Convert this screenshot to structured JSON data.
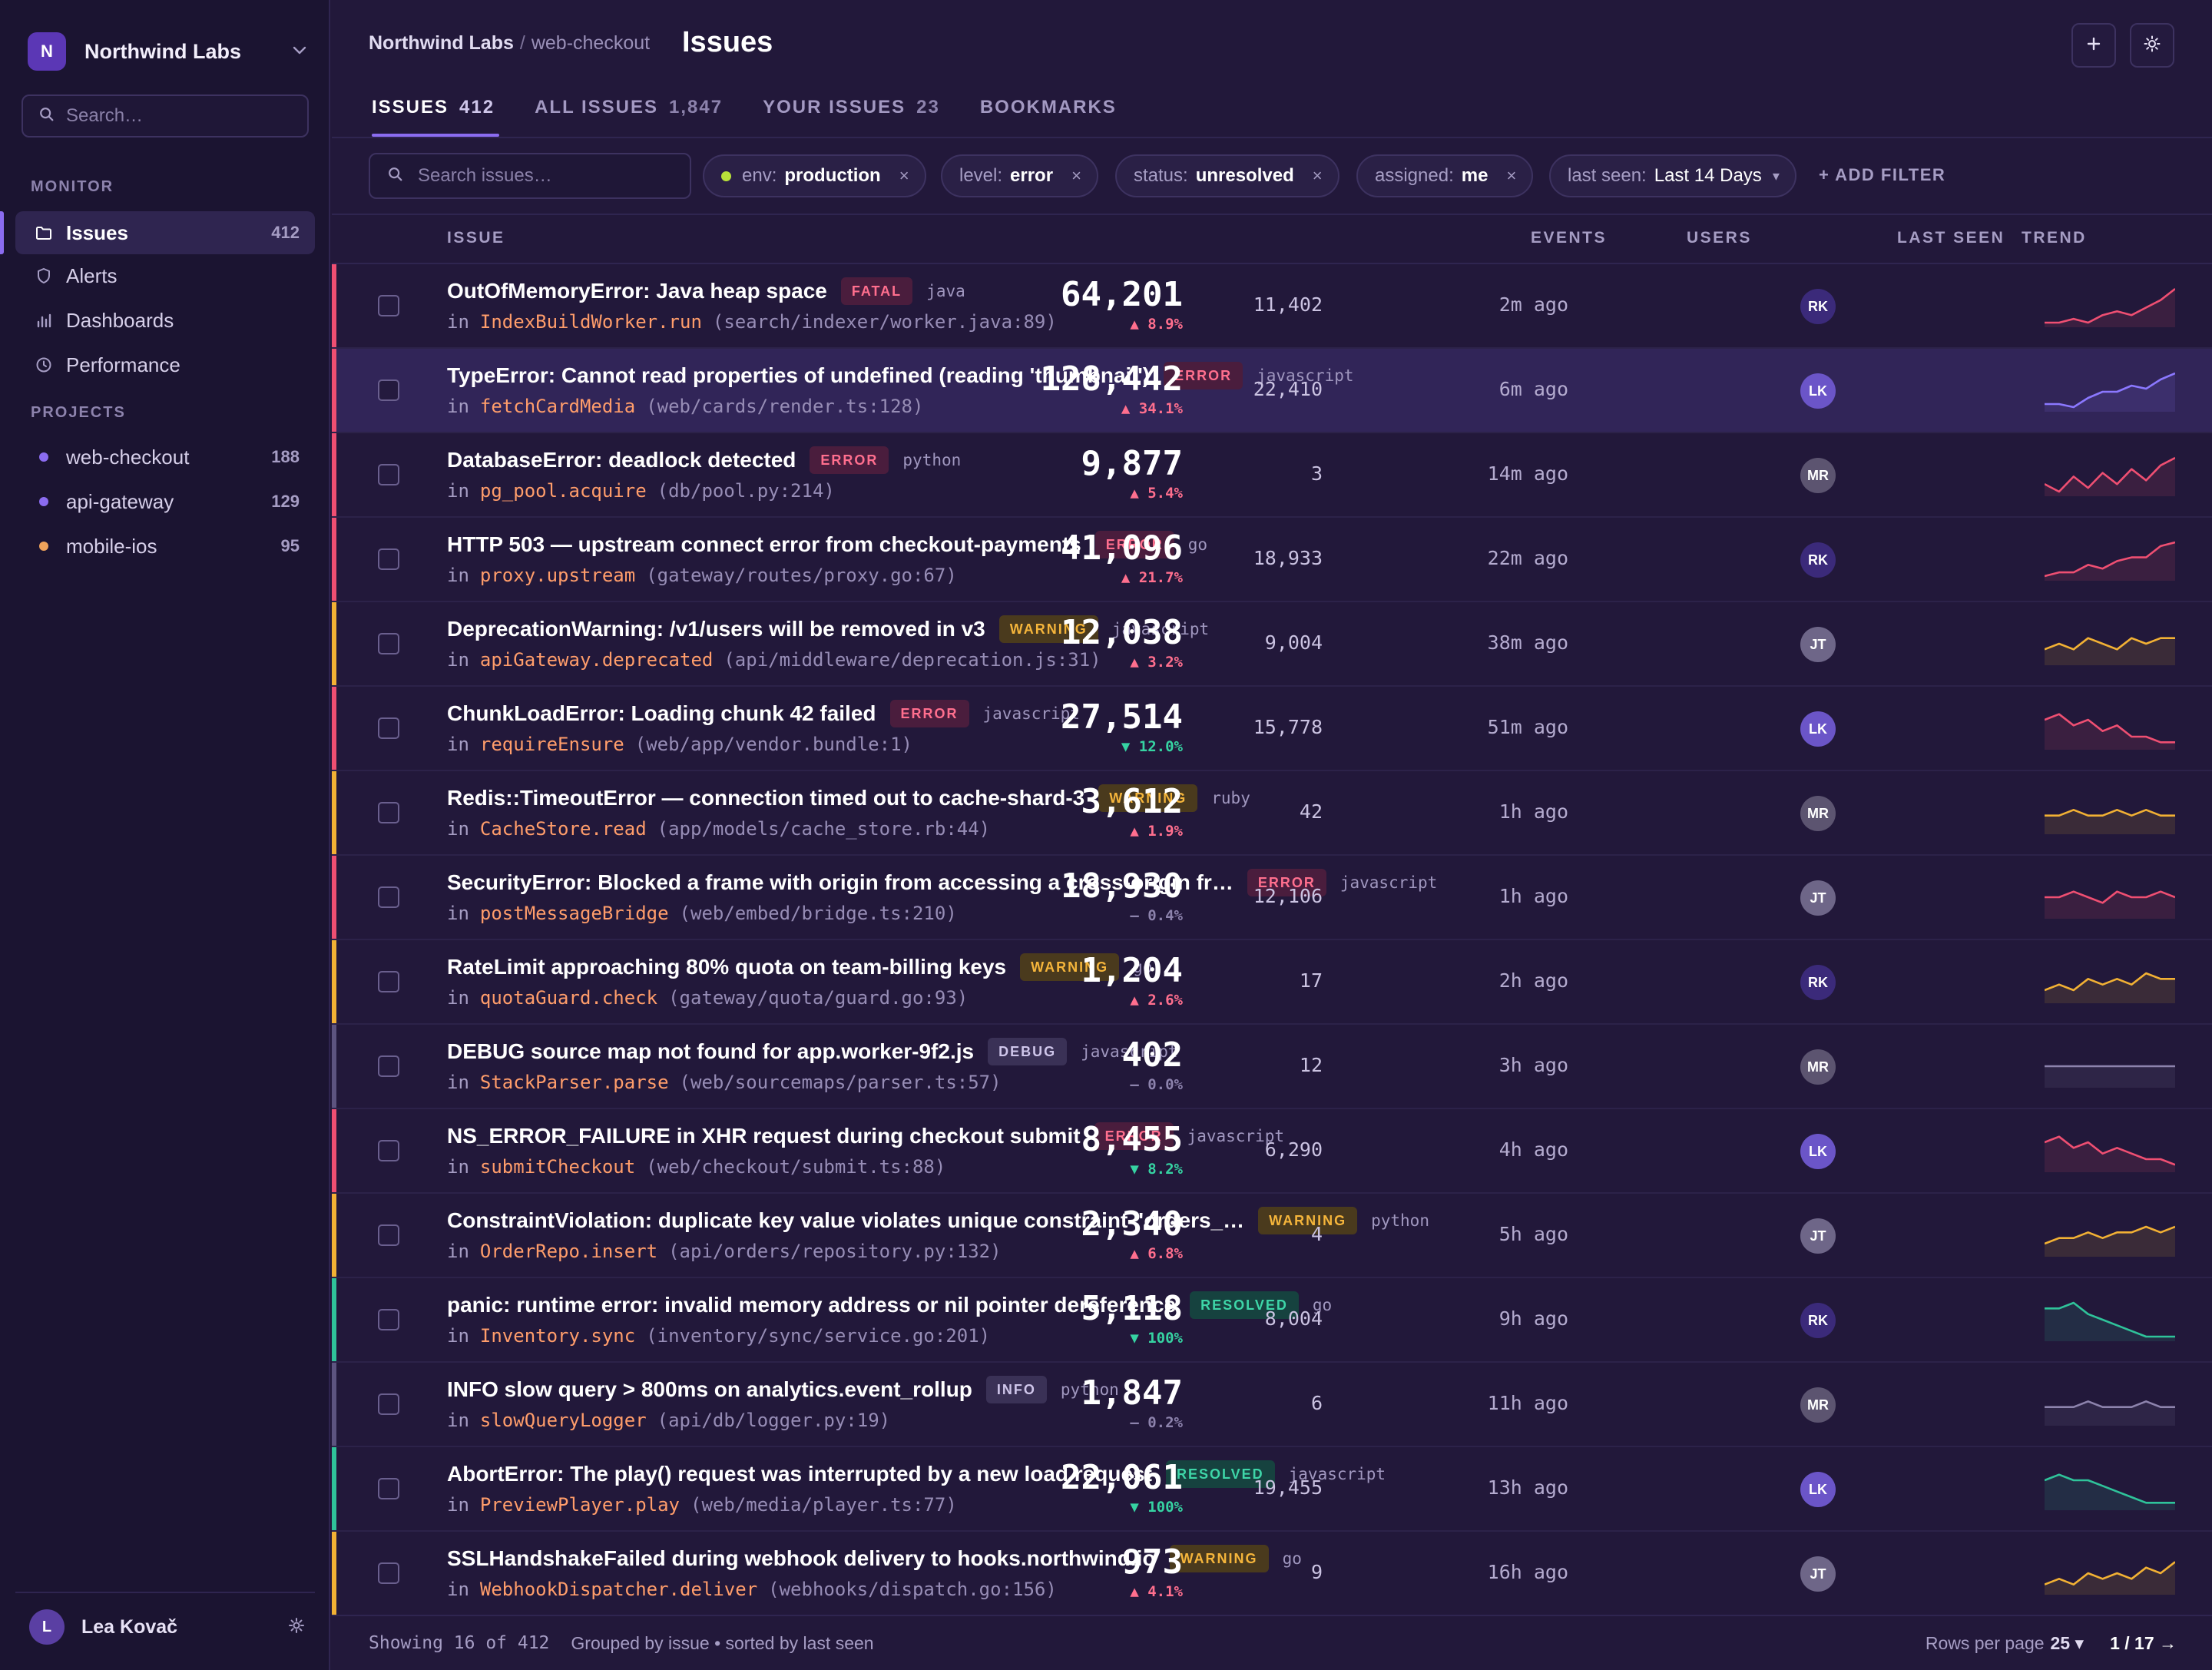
{
  "sidebar": {
    "org_initial": "N",
    "org_name": "Northwind Labs",
    "search_placeholder": "Search…",
    "monitor_heading": "MONITOR",
    "monitor_items": [
      {
        "label": "Issues",
        "count": "412",
        "icon": "folder-icon",
        "active": true
      },
      {
        "label": "Alerts",
        "count": "",
        "icon": "shield-icon",
        "active": false
      },
      {
        "label": "Dashboards",
        "count": "",
        "icon": "bar-chart-icon",
        "active": false
      },
      {
        "label": "Performance",
        "count": "",
        "icon": "clock-icon",
        "active": false
      }
    ],
    "projects_heading": "PROJECTS",
    "projects": [
      {
        "label": "web-checkout",
        "count": "188",
        "color": "#8b6cf0"
      },
      {
        "label": "api-gateway",
        "count": "129",
        "color": "#8b6cf0"
      },
      {
        "label": "mobile-ios",
        "count": "95",
        "color": "#f0a35b"
      }
    ],
    "user_initial": "L",
    "user_name": "Lea Kovač"
  },
  "header": {
    "breadcrumb_org": "Northwind Labs",
    "breadcrumb_sep": "/",
    "breadcrumb_project": "web-checkout",
    "title": "Issues",
    "tabs": [
      {
        "label": "ISSUES",
        "count": "412",
        "active": true
      },
      {
        "label": "ALL ISSUES",
        "count": "1,847",
        "active": false
      },
      {
        "label": "YOUR ISSUES",
        "count": "23",
        "active": false
      },
      {
        "label": "BOOKMARKS",
        "count": "",
        "active": false
      }
    ]
  },
  "filters": {
    "search_placeholder": "Search issues…",
    "chips": [
      {
        "key": "env:",
        "value": "production",
        "close": "×"
      },
      {
        "key": "level:",
        "value": "error",
        "close": "×"
      },
      {
        "key": "status:",
        "value": "unresolved",
        "close": "×"
      },
      {
        "key": "assigned:",
        "value": "me",
        "close": "×"
      }
    ],
    "last_seen_key": "last seen:",
    "last_seen_value": "Last 14 Days",
    "last_seen_caret": "▾",
    "add_filter": "+ ADD FILTER"
  },
  "columns": {
    "issue": "ISSUE",
    "events": "EVENTS",
    "users": "USERS",
    "last_seen": "LAST SEEN",
    "trend": "TREND"
  },
  "colors": {
    "fatal": "#ef4f72",
    "error": "#ef4f72",
    "warning": "#f2b134",
    "debug": "#5d5480",
    "info": "#5d5480",
    "resolved": "#2fc39a",
    "up": "#ff6f8e",
    "down": "#36d3a2",
    "flat": "#8d83ad"
  },
  "issues": [
    {
      "title": "OutOfMemoryError: Java heap space",
      "badge": "FATAL",
      "kind": "fatal",
      "platform": "java",
      "in": "in",
      "fn": "IndexBuildWorker.run",
      "path": "(search/indexer/worker.java:89)",
      "events": "64,201",
      "delta": "▲ 8.9%",
      "dir": "up",
      "users": "11,402",
      "assignee": "RK",
      "last_seen": "2m ago",
      "trend": [
        3,
        3,
        4,
        3,
        5,
        6,
        5,
        7,
        9,
        12
      ]
    },
    {
      "title": "TypeError: Cannot read properties of undefined (reading 'thumbnail')",
      "badge": "ERROR",
      "kind": "error",
      "platform": "javascript",
      "in": "in",
      "fn": "fetchCardMedia",
      "path": "(web/cards/render.ts:128)",
      "events": "128,442",
      "delta": "▲ 34.1%",
      "dir": "up",
      "users": "22,410",
      "assignee": "LK",
      "last_seen": "6m ago",
      "trend": [
        3,
        3,
        2,
        5,
        7,
        7,
        9,
        8,
        11,
        13
      ],
      "highlight": true
    },
    {
      "title": "DatabaseError: deadlock detected",
      "badge": "ERROR",
      "kind": "error",
      "platform": "python",
      "in": "in",
      "fn": "pg_pool.acquire",
      "path": "(db/pool.py:214)",
      "events": "9,877",
      "delta": "▲ 5.4%",
      "dir": "up",
      "users": "3",
      "assignee": "MR",
      "last_seen": "14m ago",
      "trend": [
        5,
        3,
        7,
        4,
        8,
        5,
        9,
        6,
        10,
        12
      ]
    },
    {
      "title": "HTTP 503 — upstream connect error from checkout-payments",
      "badge": "ERROR",
      "kind": "error",
      "platform": "go",
      "in": "in",
      "fn": "proxy.upstream",
      "path": "(gateway/routes/proxy.go:67)",
      "events": "41,096",
      "delta": "▲ 21.7%",
      "dir": "up",
      "users": "18,933",
      "assignee": "RK",
      "last_seen": "22m ago",
      "trend": [
        3,
        4,
        4,
        6,
        5,
        7,
        8,
        8,
        11,
        12
      ]
    },
    {
      "title": "DeprecationWarning: /v1/users will be removed in v3",
      "badge": "WARNING",
      "kind": "warning",
      "platform": "javascript",
      "in": "in",
      "fn": "apiGateway.deprecated",
      "path": "(api/middleware/deprecation.js:31)",
      "events": "12,038",
      "delta": "▲ 3.2%",
      "dir": "up",
      "users": "9,004",
      "assignee": "JT",
      "last_seen": "38m ago",
      "trend": [
        6,
        7,
        6,
        8,
        7,
        6,
        8,
        7,
        8,
        8
      ]
    },
    {
      "title": "ChunkLoadError: Loading chunk 42 failed",
      "badge": "ERROR",
      "kind": "error",
      "platform": "javascript",
      "in": "in",
      "fn": "requireEnsure",
      "path": "(web/app/vendor.bundle:1)",
      "events": "27,514",
      "delta": "▼ 12.0%",
      "dir": "down",
      "users": "15,778",
      "assignee": "LK",
      "last_seen": "51m ago",
      "trend": [
        10,
        11,
        9,
        10,
        8,
        9,
        7,
        7,
        6,
        6
      ]
    },
    {
      "title": "Redis::TimeoutError — connection timed out to cache-shard-3",
      "badge": "WARNING",
      "kind": "warning",
      "platform": "ruby",
      "in": "in",
      "fn": "CacheStore.read",
      "path": "(app/models/cache_store.rb:44)",
      "events": "3,612",
      "delta": "▲ 1.9%",
      "dir": "up",
      "users": "42",
      "assignee": "MR",
      "last_seen": "1h ago",
      "trend": [
        7,
        7,
        8,
        7,
        7,
        8,
        7,
        8,
        7,
        7
      ]
    },
    {
      "title": "SecurityError: Blocked a frame with origin from accessing a cross-origin fr…",
      "badge": "ERROR",
      "kind": "error",
      "platform": "javascript",
      "in": "in",
      "fn": "postMessageBridge",
      "path": "(web/embed/bridge.ts:210)",
      "events": "18,930",
      "delta": "— 0.4%",
      "dir": "flat",
      "users": "12,106",
      "assignee": "JT",
      "last_seen": "1h ago",
      "trend": [
        7,
        7,
        8,
        7,
        6,
        8,
        7,
        7,
        8,
        7
      ]
    },
    {
      "title": "RateLimit approaching 80% quota on team-billing keys",
      "badge": "WARNING",
      "kind": "warning",
      "platform": "go",
      "in": "in",
      "fn": "quotaGuard.check",
      "path": "(gateway/quota/guard.go:93)",
      "events": "1,204",
      "delta": "▲ 2.6%",
      "dir": "up",
      "users": "17",
      "assignee": "RK",
      "last_seen": "2h ago",
      "trend": [
        6,
        7,
        6,
        8,
        7,
        8,
        7,
        9,
        8,
        8
      ]
    },
    {
      "title": "DEBUG source map not found for app.worker-9f2.js",
      "badge": "DEBUG",
      "kind": "debug",
      "platform": "javascript",
      "in": "in",
      "fn": "StackParser.parse",
      "path": "(web/sourcemaps/parser.ts:57)",
      "events": "402",
      "delta": "— 0.0%",
      "dir": "flat",
      "users": "12",
      "assignee": "MR",
      "last_seen": "3h ago",
      "trend": [
        7,
        7,
        7,
        7,
        7,
        7,
        7,
        7,
        7,
        7
      ]
    },
    {
      "title": "NS_ERROR_FAILURE in XHR request during checkout submit",
      "badge": "ERROR",
      "kind": "error",
      "platform": "javascript",
      "in": "in",
      "fn": "submitCheckout",
      "path": "(web/checkout/submit.ts:88)",
      "events": "8,455",
      "delta": "▼ 8.2%",
      "dir": "down",
      "users": "6,290",
      "assignee": "LK",
      "last_seen": "4h ago",
      "trend": [
        10,
        11,
        9,
        10,
        8,
        9,
        8,
        7,
        7,
        6
      ]
    },
    {
      "title": "ConstraintViolation: duplicate key value violates unique constraint \"orders_…",
      "badge": "WARNING",
      "kind": "warning",
      "platform": "python",
      "in": "in",
      "fn": "OrderRepo.insert",
      "path": "(api/orders/repository.py:132)",
      "events": "2,340",
      "delta": "▲ 6.8%",
      "dir": "up",
      "users": "4",
      "assignee": "JT",
      "last_seen": "5h ago",
      "trend": [
        6,
        7,
        7,
        8,
        7,
        8,
        8,
        9,
        8,
        9
      ]
    },
    {
      "title": "panic: runtime error: invalid memory address or nil pointer dereference",
      "badge": "RESOLVED",
      "kind": "resolved",
      "platform": "go",
      "in": "in",
      "fn": "Inventory.sync",
      "path": "(inventory/sync/service.go:201)",
      "events": "5,118",
      "delta": "▼ 100%",
      "dir": "down",
      "users": "8,004",
      "assignee": "RK",
      "last_seen": "9h ago",
      "trend": [
        11,
        11,
        12,
        10,
        9,
        8,
        7,
        6,
        6,
        6
      ]
    },
    {
      "title": "INFO slow query > 800ms on analytics.event_rollup",
      "badge": "INFO",
      "kind": "info",
      "platform": "python",
      "in": "in",
      "fn": "slowQueryLogger",
      "path": "(api/db/logger.py:19)",
      "events": "1,847",
      "delta": "— 0.2%",
      "dir": "flat",
      "users": "6",
      "assignee": "MR",
      "last_seen": "11h ago",
      "trend": [
        7,
        7,
        7,
        8,
        7,
        7,
        7,
        8,
        7,
        7
      ]
    },
    {
      "title": "AbortError: The play() request was interrupted by a new load request",
      "badge": "RESOLVED",
      "kind": "resolved",
      "platform": "javascript",
      "in": "in",
      "fn": "PreviewPlayer.play",
      "path": "(web/media/player.ts:77)",
      "events": "22,061",
      "delta": "▼ 100%",
      "dir": "down",
      "users": "19,455",
      "assignee": "LK",
      "last_seen": "13h ago",
      "trend": [
        10,
        11,
        10,
        10,
        9,
        8,
        7,
        6,
        6,
        6
      ]
    },
    {
      "title": "SSLHandshakeFailed during webhook delivery to hooks.northwind.io",
      "badge": "WARNING",
      "kind": "warning",
      "platform": "go",
      "in": "in",
      "fn": "WebhookDispatcher.deliver",
      "path": "(webhooks/dispatch.go:156)",
      "events": "973",
      "delta": "▲ 4.1%",
      "dir": "up",
      "users": "9",
      "assignee": "JT",
      "last_seen": "16h ago",
      "trend": [
        6,
        7,
        6,
        8,
        7,
        8,
        7,
        9,
        8,
        10
      ]
    }
  ],
  "assignee_colors": {
    "RK": "#3b2a7a",
    "LK": "#6b55c8",
    "MR": "#5c5470",
    "JT": "#6e6688"
  },
  "footer": {
    "showing": "Showing 16 of 412",
    "grouping": "Grouped by issue • sorted by last seen",
    "rows_label": "Rows per page",
    "rows_value": "25 ▾",
    "page": "1 / 17 →"
  }
}
